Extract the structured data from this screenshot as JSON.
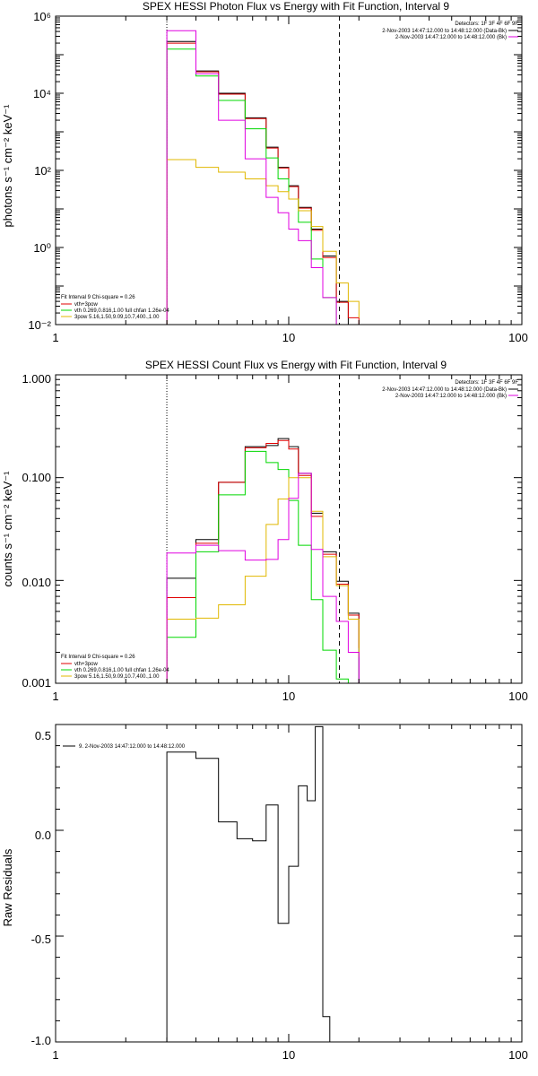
{
  "colors": {
    "black": "#000000",
    "red": "#e00000",
    "green": "#00d800",
    "magenta": "#e000e0",
    "yellow": "#e0b800"
  },
  "chart_data": [
    {
      "type": "line",
      "title": "SPEX HESSI Photon Flux vs Energy with Fit Function, Interval 9",
      "xlabel": "",
      "ylabel": "photons s⁻¹ cm⁻² keV⁻¹",
      "xscale": "log",
      "yscale": "log",
      "xlim": [
        1,
        100
      ],
      "ylim": [
        0.01,
        1000000
      ],
      "xticks": [
        "1",
        "10",
        "100"
      ],
      "yticks": [
        "10⁻²",
        "10⁰",
        "10²",
        "10⁴",
        "10⁶"
      ],
      "vlines": [
        {
          "x": 3,
          "style": "dotted"
        },
        {
          "x": 16.5,
          "style": "dashed"
        }
      ],
      "legend_tr": {
        "header": "Detectors: 1F 3F 4F 6F 9F",
        "entries": [
          {
            "label": "2-Nov-2003 14:47:12.000 to 14:48:12.000 (Data-Bk)",
            "color": "black"
          },
          {
            "label": "2-Nov-2003 14:47:12.000 to 14:48:12.000 (Bk)",
            "color": "magenta"
          }
        ]
      },
      "legend_bl": {
        "header": "Fit Interval 9   Chi-square = 0.26",
        "entries": [
          {
            "label": "vth+3pow",
            "color": "red"
          },
          {
            "label": "vth 0.269,0.816,1.00  full chfan 1.26e-04",
            "color": "green"
          },
          {
            "label": "3pow 5.16,1.50,9.09,10.7,400.,1.00",
            "color": "yellow"
          }
        ]
      },
      "edges": [
        3,
        4,
        5,
        6.5,
        8,
        9,
        10,
        11,
        12.5,
        14,
        16,
        18,
        20
      ],
      "series": [
        {
          "name": "Data-Bk",
          "color": "black",
          "values": [
            220000,
            38000,
            10000,
            2300,
            400,
            120,
            40,
            11,
            3,
            0.6,
            0.04
          ]
        },
        {
          "name": "vth+3pow",
          "color": "red",
          "values": [
            200000,
            36000,
            9500,
            2200,
            380,
            115,
            38,
            10.5,
            2.8,
            0.55,
            0.038,
            0.015,
            0.009
          ]
        },
        {
          "name": "vth",
          "color": "green",
          "values": [
            140000,
            28000,
            6500,
            1200,
            210,
            60,
            18,
            4.5,
            0.5,
            0.05,
            0.009
          ]
        },
        {
          "name": "3pow",
          "color": "yellow",
          "values": [
            190,
            120,
            90,
            60,
            40,
            28,
            18,
            9,
            3.5,
            0.8,
            0.12,
            0.04,
            0.015
          ]
        },
        {
          "name": "Bk",
          "color": "magenta",
          "values": [
            420000,
            32000,
            2000,
            200,
            20,
            8,
            3,
            1.5,
            0.3,
            0.05,
            0.005
          ]
        }
      ]
    },
    {
      "type": "line",
      "title": "SPEX HESSI Count Flux vs Energy with Fit Function, Interval 9",
      "xlabel": "",
      "ylabel": "counts s⁻¹ cm⁻² keV⁻¹",
      "xscale": "log",
      "yscale": "log",
      "xlim": [
        1,
        100
      ],
      "ylim": [
        0.001,
        1
      ],
      "xticks": [
        "1",
        "10",
        "100"
      ],
      "yticks": [
        "0.001",
        "0.010",
        "0.100",
        "1.000"
      ],
      "vlines": [
        {
          "x": 3,
          "style": "dotted"
        },
        {
          "x": 16.5,
          "style": "dashed"
        }
      ],
      "legend_tr": {
        "header": "Detectors: 1F 3F 4F 6F 9F",
        "entries": [
          {
            "label": "2-Nov-2003 14:47:12.000 to 14:48:12.000 (Data-Bk)",
            "color": "black"
          },
          {
            "label": "2-Nov-2003 14:47:12.000 to 14:48:12.000 (Bk)",
            "color": "magenta"
          }
        ]
      },
      "legend_bl": {
        "header": "Fit Interval 9   Chi-square = 0.26",
        "entries": [
          {
            "label": "vth+3pow",
            "color": "red"
          },
          {
            "label": "vth 0.269,0.816,1.00  full chfan 1.26e-04",
            "color": "green"
          },
          {
            "label": "3pow 5.16,1.50,9.09,10.7,400.,1.00",
            "color": "yellow"
          }
        ]
      },
      "edges": [
        3,
        4,
        5,
        6.5,
        8,
        9,
        10,
        11,
        12.5,
        14,
        16,
        18,
        20
      ],
      "series": [
        {
          "name": "Data-Bk",
          "color": "black",
          "values": [
            0.0105,
            0.025,
            0.09,
            0.2,
            0.205,
            0.24,
            0.2,
            0.11,
            0.045,
            0.019,
            0.0098,
            0.0048
          ]
        },
        {
          "name": "vth+3pow",
          "color": "red",
          "values": [
            0.0068,
            0.023,
            0.09,
            0.195,
            0.215,
            0.23,
            0.19,
            0.105,
            0.042,
            0.018,
            0.0092,
            0.0046,
            0.0022
          ]
        },
        {
          "name": "vth",
          "color": "green",
          "values": [
            0.0028,
            0.019,
            0.068,
            0.18,
            0.14,
            0.12,
            0.06,
            0.022,
            0.0065,
            0.0021,
            0.0011,
            0.0005
          ]
        },
        {
          "name": "3pow",
          "color": "yellow",
          "values": [
            0.0042,
            0.0043,
            0.0058,
            0.011,
            0.035,
            0.062,
            0.1,
            0.1,
            0.047,
            0.017,
            0.0089,
            0.0042,
            0.0018
          ]
        },
        {
          "name": "Bk",
          "color": "magenta",
          "values": [
            0.0185,
            0.022,
            0.0195,
            0.0158,
            0.016,
            0.025,
            0.063,
            0.11,
            0.02,
            0.007,
            0.004,
            0.002
          ]
        }
      ]
    },
    {
      "type": "line",
      "title": "",
      "xlabel": "",
      "ylabel": "Raw Residuals",
      "xscale": "log",
      "yscale": "linear",
      "xlim": [
        1,
        100
      ],
      "ylim": [
        -1.0,
        0.5
      ],
      "xticks": [
        "1",
        "10",
        "100"
      ],
      "yticks": [
        "-1.0",
        "-0.5",
        "0.0",
        "0.5"
      ],
      "legend": {
        "label": "9. 2-Nov-2003 14:47:12.000 to 14:48:12.000",
        "color": "black"
      },
      "edges": [
        3,
        4,
        5,
        6,
        7,
        8,
        9,
        10,
        11,
        12,
        13,
        14,
        15,
        16,
        17
      ],
      "series": [
        {
          "name": "",
          "color": "black",
          "values": [
            0.37,
            0.34,
            0.04,
            -0.04,
            -0.05,
            0.12,
            -0.44,
            -0.17,
            0.21,
            0.14,
            0.49,
            -0.88
          ]
        }
      ]
    }
  ]
}
